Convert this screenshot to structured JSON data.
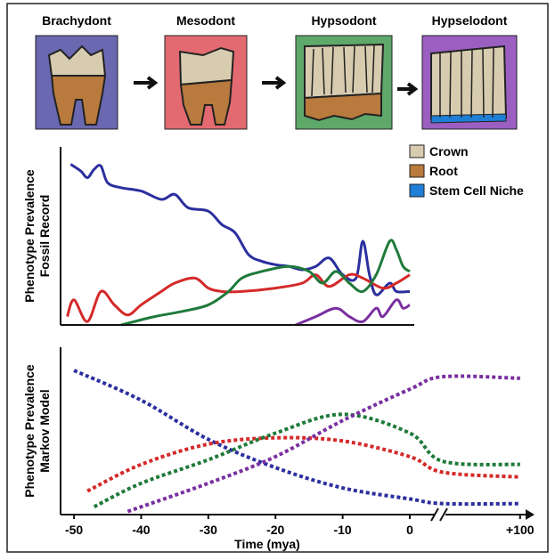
{
  "stages": [
    "Brachydont",
    "Mesodont",
    "Hypsodont",
    "Hypselodont"
  ],
  "tooth_legend": [
    {
      "label": "Crown",
      "color": "#d8ccb0"
    },
    {
      "label": "Root",
      "color": "#b97a3e"
    },
    {
      "label": "Stem Cell Niche",
      "color": "#1f7fd6"
    }
  ],
  "chart_data": [
    {
      "type": "line",
      "y_label_lines": [
        "Phenotype Prevalence",
        "Fossil Record"
      ],
      "line_style": "solid",
      "xlim": [
        -52,
        1
      ],
      "ylim": [
        0,
        1
      ],
      "series": [
        {
          "color": "#2b2f9e",
          "x": [
            -50.5,
            -49,
            -48,
            -47,
            -46,
            -45,
            -43,
            -40,
            -37,
            -35,
            -33,
            -30,
            -28,
            -26,
            -24,
            -22,
            -20,
            -18,
            -16,
            -14,
            -12,
            -10,
            -8,
            -7,
            -6,
            -5,
            -3,
            -2,
            0
          ],
          "values": [
            0.96,
            0.92,
            0.88,
            0.93,
            0.95,
            0.85,
            0.82,
            0.8,
            0.75,
            0.78,
            0.7,
            0.68,
            0.6,
            0.55,
            0.42,
            0.38,
            0.36,
            0.35,
            0.33,
            0.35,
            0.4,
            0.3,
            0.28,
            0.5,
            0.3,
            0.18,
            0.25,
            0.2,
            0.2
          ]
        },
        {
          "color": "#d42a2a",
          "x": [
            -51,
            -50,
            -48,
            -46,
            -44,
            -42,
            -40,
            -37,
            -35,
            -32,
            -30,
            -28,
            -25,
            -20,
            -16,
            -14,
            -12,
            -9,
            -7,
            -4,
            -2,
            0
          ],
          "values": [
            0.05,
            0.15,
            0.02,
            0.2,
            0.12,
            0.06,
            0.12,
            0.2,
            0.25,
            0.28,
            0.22,
            0.2,
            0.2,
            0.22,
            0.25,
            0.3,
            0.23,
            0.3,
            0.28,
            0.22,
            0.25,
            0.3
          ]
        },
        {
          "color": "#1f7a3a",
          "x": [
            -43,
            -38,
            -34,
            -30,
            -27,
            -25,
            -22,
            -18,
            -15,
            -13,
            -11,
            -9,
            -7,
            -5,
            -3,
            -2,
            -1,
            0
          ],
          "values": [
            0,
            0.05,
            0.08,
            0.12,
            0.2,
            0.28,
            0.32,
            0.35,
            0.32,
            0.25,
            0.32,
            0.25,
            0.2,
            0.3,
            0.5,
            0.45,
            0.35,
            0.32
          ]
        },
        {
          "color": "#7a2fa0",
          "x": [
            -17,
            -14,
            -11,
            -9,
            -7,
            -5,
            -4,
            -2,
            -1,
            0
          ],
          "values": [
            0,
            0.05,
            0.1,
            0.05,
            0.02,
            0.1,
            0.05,
            0.15,
            0.1,
            0.12
          ]
        }
      ]
    },
    {
      "type": "line",
      "y_label_lines": [
        "Phenotype Prevalence",
        "Markov Model"
      ],
      "x_label": "Time (mya)",
      "line_style": "dotted",
      "xlim": [
        -52,
        105
      ],
      "ylim": [
        0,
        1
      ],
      "xticks": [
        -50,
        -40,
        -30,
        -20,
        -10,
        0,
        {
          "value": 100,
          "label": "+100"
        }
      ],
      "series": [
        {
          "color": "#2b2f9e",
          "x": [
            -50,
            -40,
            -30,
            -20,
            -10,
            0,
            30,
            100
          ],
          "values": [
            0.92,
            0.73,
            0.48,
            0.3,
            0.17,
            0.1,
            0.07,
            0.07
          ]
        },
        {
          "color": "#d42a2a",
          "x": [
            -48,
            -40,
            -30,
            -20,
            -10,
            0,
            30,
            100
          ],
          "values": [
            0.15,
            0.32,
            0.45,
            0.49,
            0.47,
            0.37,
            0.27,
            0.24
          ]
        },
        {
          "color": "#1f7a3a",
          "x": [
            -47,
            -40,
            -30,
            -20,
            -10,
            0,
            30,
            100
          ],
          "values": [
            0.05,
            0.2,
            0.35,
            0.52,
            0.64,
            0.52,
            0.34,
            0.32
          ]
        },
        {
          "color": "#7a2fa0",
          "x": [
            -42,
            -30,
            -20,
            -10,
            0,
            30,
            100
          ],
          "values": [
            0.02,
            0.2,
            0.37,
            0.6,
            0.8,
            0.88,
            0.87
          ]
        }
      ]
    }
  ]
}
